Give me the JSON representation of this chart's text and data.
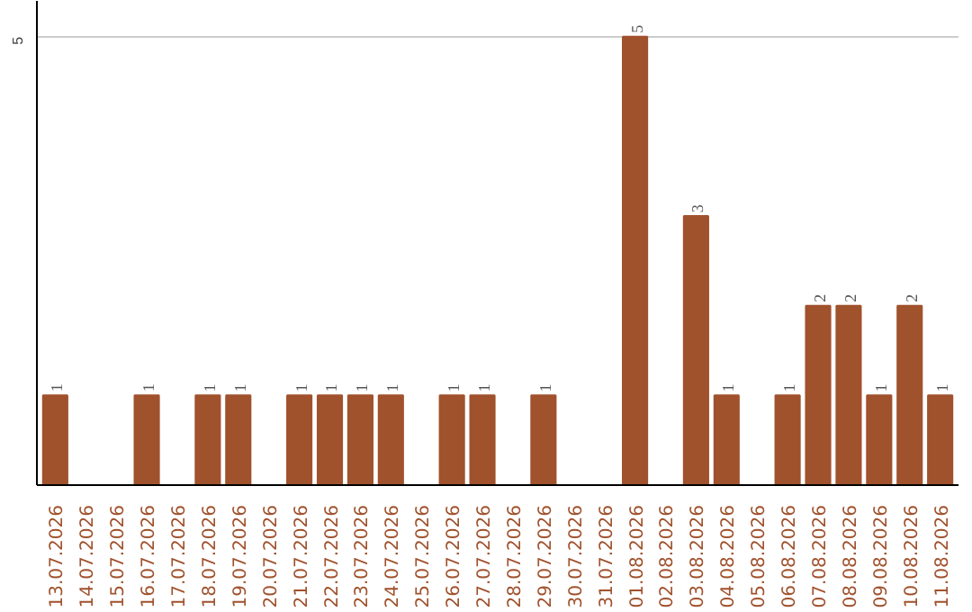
{
  "chart_data": {
    "type": "bar",
    "categories": [
      "13.07.2026",
      "14.07.2026",
      "15.07.2026",
      "16.07.2026",
      "17.07.2026",
      "18.07.2026",
      "19.07.2026",
      "20.07.2026",
      "21.07.2026",
      "22.07.2026",
      "23.07.2026",
      "24.07.2026",
      "25.07.2026",
      "26.07.2026",
      "27.07.2026",
      "28.07.2026",
      "29.07.2026",
      "30.07.2026",
      "31.07.2026",
      "01.08.2026",
      "02.08.2026",
      "03.08.2026",
      "04.08.2026",
      "05.08.2026",
      "06.08.2026",
      "07.08.2026",
      "08.08.2026",
      "09.08.2026",
      "10.08.2026",
      "11.08.2026"
    ],
    "values": [
      1,
      null,
      null,
      1,
      null,
      1,
      1,
      null,
      1,
      1,
      1,
      1,
      null,
      1,
      1,
      null,
      1,
      null,
      null,
      5,
      null,
      3,
      1,
      null,
      1,
      2,
      2,
      1,
      2,
      1
    ],
    "color": "#a0522d",
    "ylim": [
      0,
      5.4
    ],
    "yticks": [
      5
    ],
    "grid": "y",
    "data_labels": true
  }
}
